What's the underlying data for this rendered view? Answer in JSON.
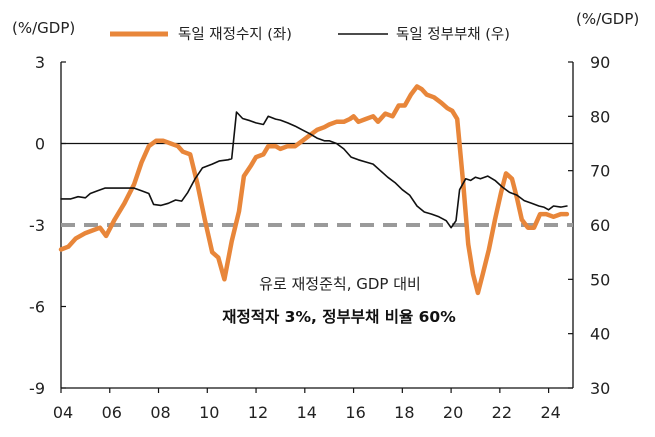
{
  "chart_data": {
    "type": "line",
    "left_unit": "(%/GDP)",
    "right_unit": "(%/GDP)",
    "left_axis": {
      "ticks": [
        3,
        0,
        -3,
        -6,
        -9
      ],
      "ylim": [
        -9,
        3
      ]
    },
    "right_axis": {
      "ticks": [
        90,
        80,
        70,
        60,
        50,
        40,
        30
      ],
      "ylim": [
        30,
        90
      ]
    },
    "x_axis": {
      "ticks": [
        "04",
        "06",
        "08",
        "10",
        "12",
        "14",
        "16",
        "18",
        "20",
        "22",
        "24"
      ],
      "tick_values": [
        2004,
        2006,
        2008,
        2010,
        2012,
        2014,
        2016,
        2018,
        2020,
        2022,
        2024
      ],
      "xlim": [
        2004,
        2025
      ]
    },
    "annotations": {
      "line1": "유로 재정준칙, GDP 대비",
      "line2": "재정적자 3%, 정부부채 비율 60%"
    },
    "reference_line": {
      "value": -3,
      "axis": "left",
      "style": "dashed",
      "color": "#9a9a9a"
    },
    "series": [
      {
        "name": "독일 재정수지 (좌)",
        "axis": "left",
        "color": "#e8863a",
        "points": [
          [
            2004.0,
            -3.9
          ],
          [
            2004.3,
            -3.8
          ],
          [
            2004.6,
            -3.5
          ],
          [
            2005.0,
            -3.3
          ],
          [
            2005.3,
            -3.2
          ],
          [
            2005.6,
            -3.1
          ],
          [
            2005.85,
            -3.4
          ],
          [
            2006.2,
            -2.8
          ],
          [
            2006.6,
            -2.2
          ],
          [
            2007.0,
            -1.5
          ],
          [
            2007.3,
            -0.7
          ],
          [
            2007.6,
            -0.1
          ],
          [
            2007.9,
            0.1
          ],
          [
            2008.2,
            0.1
          ],
          [
            2008.5,
            0.0
          ],
          [
            2008.8,
            -0.1
          ],
          [
            2009.0,
            -0.3
          ],
          [
            2009.3,
            -0.4
          ],
          [
            2009.6,
            -1.5
          ],
          [
            2009.9,
            -2.8
          ],
          [
            2010.2,
            -4.0
          ],
          [
            2010.45,
            -4.2
          ],
          [
            2010.7,
            -5.0
          ],
          [
            2011.0,
            -3.6
          ],
          [
            2011.3,
            -2.5
          ],
          [
            2011.5,
            -1.2
          ],
          [
            2011.8,
            -0.8
          ],
          [
            2012.0,
            -0.5
          ],
          [
            2012.3,
            -0.4
          ],
          [
            2012.5,
            -0.1
          ],
          [
            2012.8,
            -0.1
          ],
          [
            2013.0,
            -0.2
          ],
          [
            2013.3,
            -0.1
          ],
          [
            2013.6,
            -0.1
          ],
          [
            2013.9,
            0.1
          ],
          [
            2014.2,
            0.3
          ],
          [
            2014.5,
            0.5
          ],
          [
            2014.8,
            0.6
          ],
          [
            2015.0,
            0.7
          ],
          [
            2015.3,
            0.8
          ],
          [
            2015.6,
            0.8
          ],
          [
            2015.85,
            0.9
          ],
          [
            2016.0,
            1.0
          ],
          [
            2016.2,
            0.8
          ],
          [
            2016.5,
            0.9
          ],
          [
            2016.8,
            1.0
          ],
          [
            2017.0,
            0.8
          ],
          [
            2017.3,
            1.1
          ],
          [
            2017.6,
            1.0
          ],
          [
            2017.85,
            1.4
          ],
          [
            2018.1,
            1.4
          ],
          [
            2018.35,
            1.8
          ],
          [
            2018.6,
            2.1
          ],
          [
            2018.8,
            2.0
          ],
          [
            2019.0,
            1.8
          ],
          [
            2019.3,
            1.7
          ],
          [
            2019.6,
            1.5
          ],
          [
            2019.85,
            1.3
          ],
          [
            2020.05,
            1.2
          ],
          [
            2020.25,
            0.9
          ],
          [
            2020.5,
            -1.5
          ],
          [
            2020.7,
            -3.7
          ],
          [
            2020.9,
            -4.8
          ],
          [
            2021.1,
            -5.5
          ],
          [
            2021.3,
            -4.8
          ],
          [
            2021.55,
            -3.9
          ],
          [
            2021.8,
            -2.8
          ],
          [
            2022.05,
            -1.8
          ],
          [
            2022.25,
            -1.1
          ],
          [
            2022.5,
            -1.3
          ],
          [
            2022.7,
            -2.0
          ],
          [
            2022.9,
            -2.8
          ],
          [
            2023.15,
            -3.1
          ],
          [
            2023.4,
            -3.1
          ],
          [
            2023.65,
            -2.6
          ],
          [
            2023.9,
            -2.6
          ],
          [
            2024.2,
            -2.7
          ],
          [
            2024.5,
            -2.6
          ],
          [
            2024.75,
            -2.6
          ]
        ]
      },
      {
        "name": "독일 정부부채 (우)",
        "axis": "right",
        "color": "#111111",
        "points": [
          [
            2004.0,
            64.8
          ],
          [
            2004.4,
            64.8
          ],
          [
            2004.7,
            65.2
          ],
          [
            2005.0,
            65.0
          ],
          [
            2005.2,
            65.8
          ],
          [
            2005.5,
            66.3
          ],
          [
            2005.8,
            66.8
          ],
          [
            2006.2,
            66.8
          ],
          [
            2006.6,
            66.8
          ],
          [
            2007.0,
            66.8
          ],
          [
            2007.3,
            66.3
          ],
          [
            2007.6,
            65.8
          ],
          [
            2007.8,
            63.8
          ],
          [
            2008.1,
            63.6
          ],
          [
            2008.4,
            64.0
          ],
          [
            2008.7,
            64.6
          ],
          [
            2008.95,
            64.4
          ],
          [
            2009.2,
            66.0
          ],
          [
            2009.5,
            68.5
          ],
          [
            2009.8,
            70.5
          ],
          [
            2010.2,
            71.2
          ],
          [
            2010.5,
            71.8
          ],
          [
            2010.85,
            72.0
          ],
          [
            2011.0,
            72.2
          ],
          [
            2011.2,
            80.8
          ],
          [
            2011.45,
            79.6
          ],
          [
            2011.75,
            79.2
          ],
          [
            2012.0,
            78.8
          ],
          [
            2012.3,
            78.5
          ],
          [
            2012.5,
            80.0
          ],
          [
            2012.8,
            79.5
          ],
          [
            2013.0,
            79.3
          ],
          [
            2013.3,
            78.8
          ],
          [
            2013.6,
            78.2
          ],
          [
            2013.9,
            77.5
          ],
          [
            2014.2,
            76.8
          ],
          [
            2014.5,
            76.0
          ],
          [
            2014.8,
            75.5
          ],
          [
            2015.0,
            75.5
          ],
          [
            2015.3,
            75.0
          ],
          [
            2015.6,
            74.0
          ],
          [
            2015.9,
            72.5
          ],
          [
            2016.2,
            72.0
          ],
          [
            2016.5,
            71.6
          ],
          [
            2016.8,
            71.2
          ],
          [
            2017.1,
            70.0
          ],
          [
            2017.4,
            68.8
          ],
          [
            2017.7,
            67.8
          ],
          [
            2018.0,
            66.5
          ],
          [
            2018.3,
            65.5
          ],
          [
            2018.6,
            63.5
          ],
          [
            2018.9,
            62.4
          ],
          [
            2019.2,
            62.0
          ],
          [
            2019.5,
            61.5
          ],
          [
            2019.8,
            60.8
          ],
          [
            2020.0,
            59.5
          ],
          [
            2020.2,
            60.8
          ],
          [
            2020.35,
            66.5
          ],
          [
            2020.6,
            68.5
          ],
          [
            2020.8,
            68.2
          ],
          [
            2021.0,
            68.8
          ],
          [
            2021.2,
            68.5
          ],
          [
            2021.5,
            69.0
          ],
          [
            2021.8,
            68.2
          ],
          [
            2022.1,
            67.0
          ],
          [
            2022.4,
            66.0
          ],
          [
            2022.7,
            65.5
          ],
          [
            2023.0,
            64.5
          ],
          [
            2023.3,
            64.0
          ],
          [
            2023.6,
            63.5
          ],
          [
            2023.8,
            63.3
          ],
          [
            2024.0,
            62.8
          ],
          [
            2024.2,
            63.5
          ],
          [
            2024.5,
            63.3
          ],
          [
            2024.75,
            63.5
          ]
        ]
      }
    ]
  }
}
